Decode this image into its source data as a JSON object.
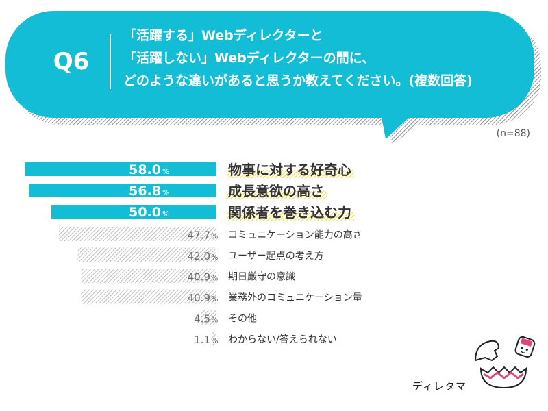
{
  "question": {
    "number": "Q6",
    "lines": [
      "「活躍する」Webディレクターと",
      "「活躍しない」Webディレクターの間に、",
      "どのような違いがあると思うか教えてください。(複数回答)"
    ]
  },
  "sample_size": "(n=88)",
  "colors": {
    "accent": "#13bdd6",
    "highlight": "#f2e23a",
    "gray_hatch": "#b8b8b8",
    "white": "#ffffff"
  },
  "chart_data": {
    "type": "bar",
    "orientation": "horizontal",
    "unit": "%",
    "xlim": [
      0,
      100
    ],
    "categories": [
      "物事に対する好奇心",
      "成長意欲の高さ",
      "関係者を巻き込む力",
      "コミュニケーション能力の高さ",
      "ユーザー起点の考え方",
      "期日厳守の意識",
      "業務外のコミュニケーション量",
      "その他",
      "わからない/答えられない"
    ],
    "values": [
      58.0,
      56.8,
      50.0,
      47.7,
      42.0,
      40.9,
      40.9,
      4.5,
      1.1
    ],
    "value_labels": [
      "58.0",
      "56.8",
      "50.0",
      "47.7",
      "42.0",
      "40.9",
      "40.9",
      "4.5",
      "1.1"
    ],
    "highlighted_top": 3
  },
  "brand": {
    "name": "ディレタマ"
  }
}
